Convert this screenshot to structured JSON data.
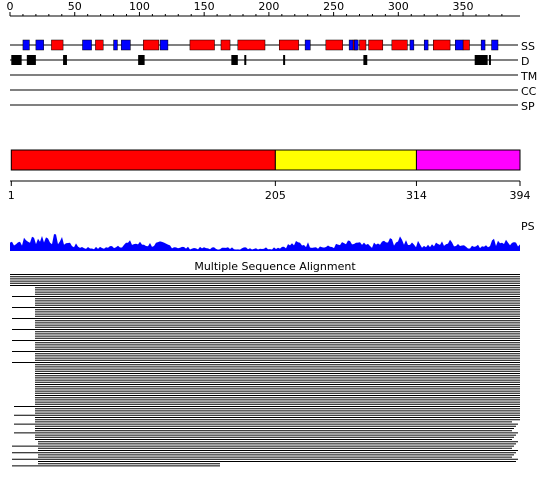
{
  "ruler": {
    "ticks": [
      "0",
      "50",
      "100",
      "150",
      "200",
      "250",
      "300",
      "350"
    ],
    "max": 394
  },
  "tracks": {
    "ss": "SS",
    "d": "D",
    "tm": "TM",
    "cc": "CC",
    "sp": "SP",
    "ps": "PS"
  },
  "colors": {
    "helix": "#ff0000",
    "strand": "#0000ff",
    "disorder": "#000000",
    "domain1": "#ff0000",
    "domain2": "#ffff00",
    "domain3": "#ff00ff",
    "profile": "#0000ff"
  },
  "secondary_structure": {
    "helices": [
      [
        32,
        41
      ],
      [
        66,
        72
      ],
      [
        103,
        115
      ],
      [
        139,
        158
      ],
      [
        163,
        170
      ],
      [
        176,
        197
      ],
      [
        208,
        223
      ],
      [
        244,
        257
      ],
      [
        265,
        268
      ],
      [
        270,
        275
      ],
      [
        277,
        288
      ],
      [
        295,
        307
      ],
      [
        327,
        340
      ],
      [
        350,
        355
      ]
    ],
    "strands": [
      [
        10,
        15
      ],
      [
        20,
        26
      ],
      [
        56,
        63
      ],
      [
        80,
        83
      ],
      [
        86,
        93
      ],
      [
        116,
        122
      ],
      [
        228,
        232
      ],
      [
        262,
        265
      ],
      [
        266,
        269
      ],
      [
        309,
        312
      ],
      [
        320,
        323
      ],
      [
        344,
        350
      ],
      [
        364,
        367
      ],
      [
        372,
        377
      ]
    ]
  },
  "disorder": [
    [
      1,
      9
    ],
    [
      13,
      20
    ],
    [
      41,
      44
    ],
    [
      99,
      104
    ],
    [
      171,
      176
    ],
    [
      181,
      182
    ],
    [
      211,
      212
    ],
    [
      273,
      276
    ],
    [
      359,
      369
    ],
    [
      370,
      371
    ]
  ],
  "domains": [
    {
      "start": "1",
      "end": "205"
    },
    {
      "start": "205",
      "end": "314"
    },
    {
      "start": "314",
      "end": "394"
    }
  ],
  "msa": {
    "title": "Multiple Sequence Alignment"
  }
}
